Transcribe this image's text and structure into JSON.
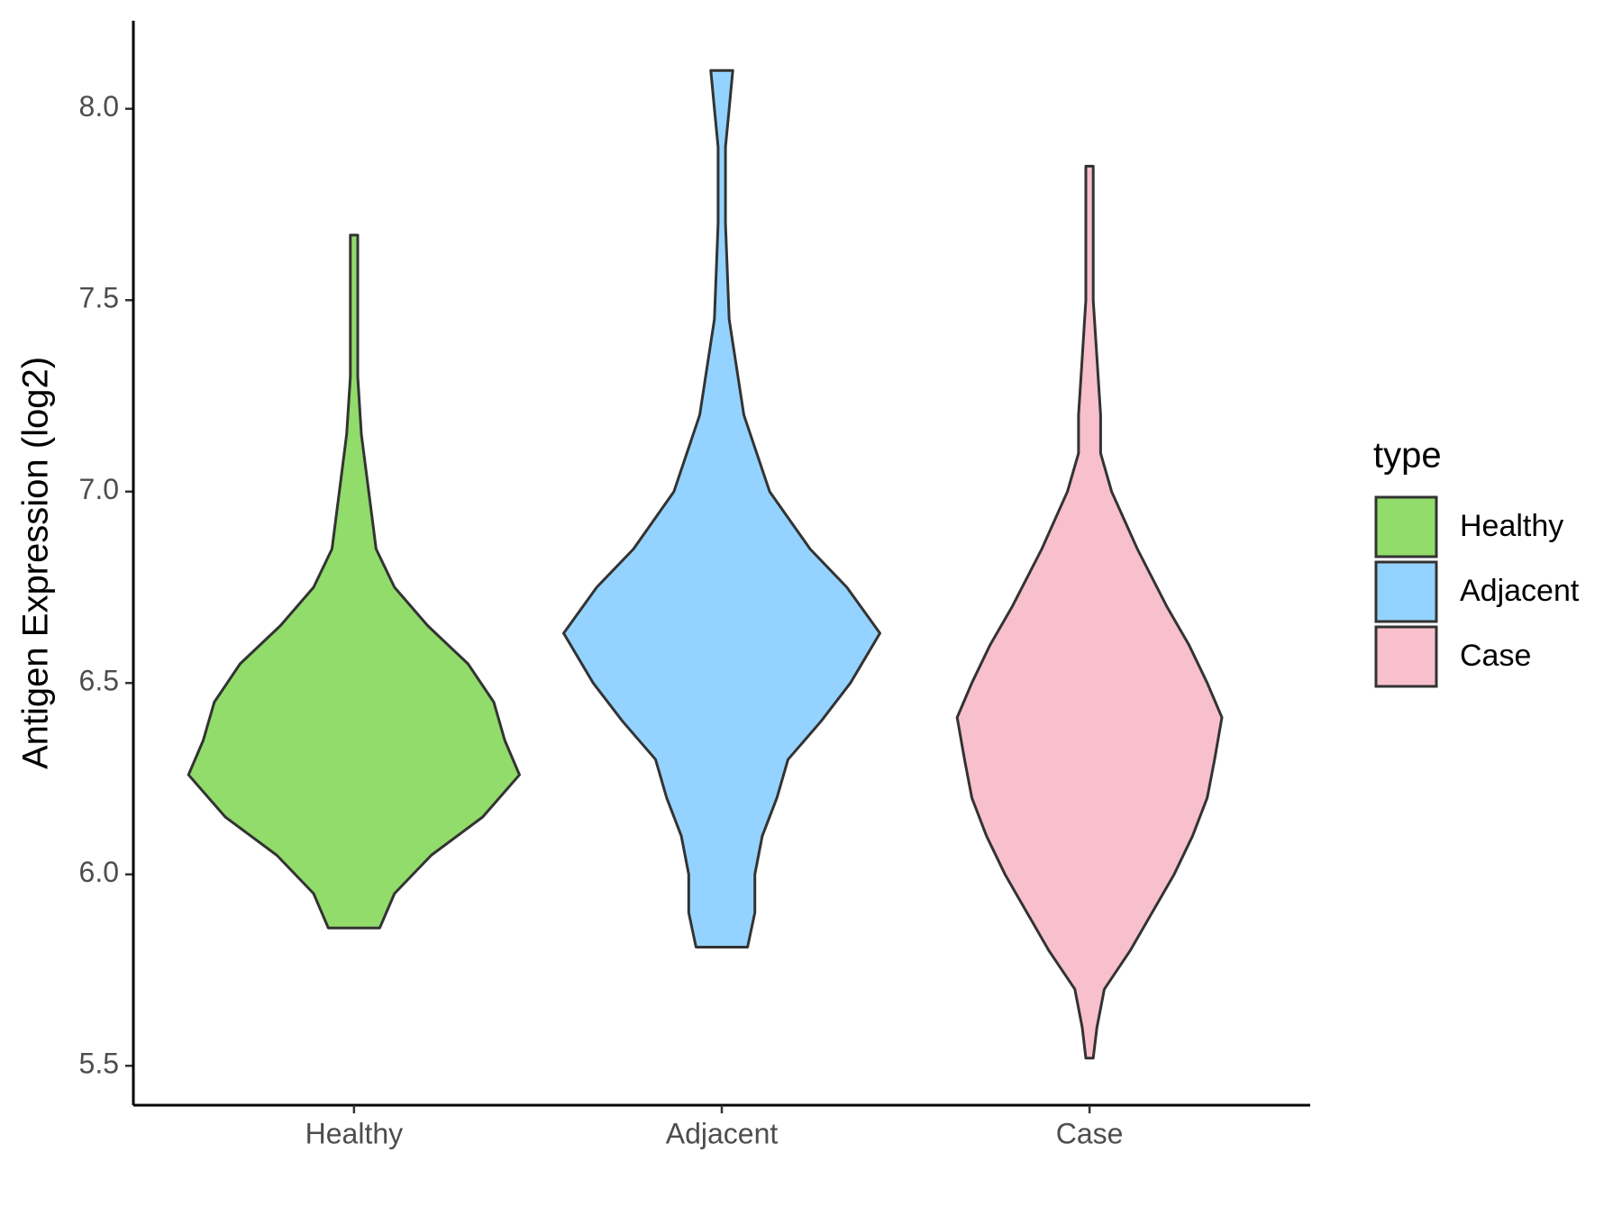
{
  "chart_data": {
    "type": "violin",
    "y_label": "Antigen Expression (log2)",
    "categories": [
      "Healthy",
      "Adjacent",
      "Case"
    ],
    "ylim": [
      5.397,
      8.23
    ],
    "yticks": [
      5.5,
      {
        "value": 6,
        "label": "6.0"
      },
      6.5,
      {
        "value": 7,
        "label": "7.0"
      },
      7.5,
      {
        "value": 8,
        "label": "8.0"
      }
    ],
    "legend_title": "type",
    "legend_position": "right",
    "series": [
      {
        "name": "Healthy",
        "color": "#91dc6a",
        "y": [
          5.86,
          5.95,
          6.05,
          6.15,
          6.26,
          6.35,
          6.45,
          6.55,
          6.65,
          6.75,
          6.85,
          7.0,
          7.15,
          7.3,
          7.45,
          7.6,
          7.67
        ],
        "half_widths": [
          0.07,
          0.11,
          0.21,
          0.35,
          0.45,
          0.41,
          0.38,
          0.31,
          0.2,
          0.11,
          0.06,
          0.04,
          0.02,
          0.01,
          0.01,
          0.01,
          0.01
        ]
      },
      {
        "name": "Adjacent",
        "color": "#94d3ff",
        "y": [
          5.81,
          5.9,
          6.0,
          6.1,
          6.2,
          6.3,
          6.4,
          6.5,
          6.63,
          6.75,
          6.85,
          7.0,
          7.2,
          7.45,
          7.7,
          7.9,
          8.0,
          8.1
        ],
        "half_widths": [
          0.07,
          0.09,
          0.09,
          0.11,
          0.15,
          0.18,
          0.27,
          0.35,
          0.43,
          0.34,
          0.24,
          0.13,
          0.06,
          0.02,
          0.01,
          0.01,
          0.02,
          0.03
        ]
      },
      {
        "name": "Case",
        "color": "#f7c0cc",
        "y": [
          5.52,
          5.6,
          5.7,
          5.8,
          5.9,
          6.0,
          6.1,
          6.2,
          6.3,
          6.41,
          6.5,
          6.6,
          6.7,
          6.85,
          7.0,
          7.1,
          7.2,
          7.35,
          7.5,
          7.7,
          7.85
        ],
        "half_widths": [
          0.01,
          0.02,
          0.04,
          0.11,
          0.17,
          0.23,
          0.28,
          0.32,
          0.34,
          0.36,
          0.32,
          0.27,
          0.21,
          0.13,
          0.06,
          0.03,
          0.03,
          0.02,
          0.01,
          0.01,
          0.01
        ]
      }
    ]
  }
}
